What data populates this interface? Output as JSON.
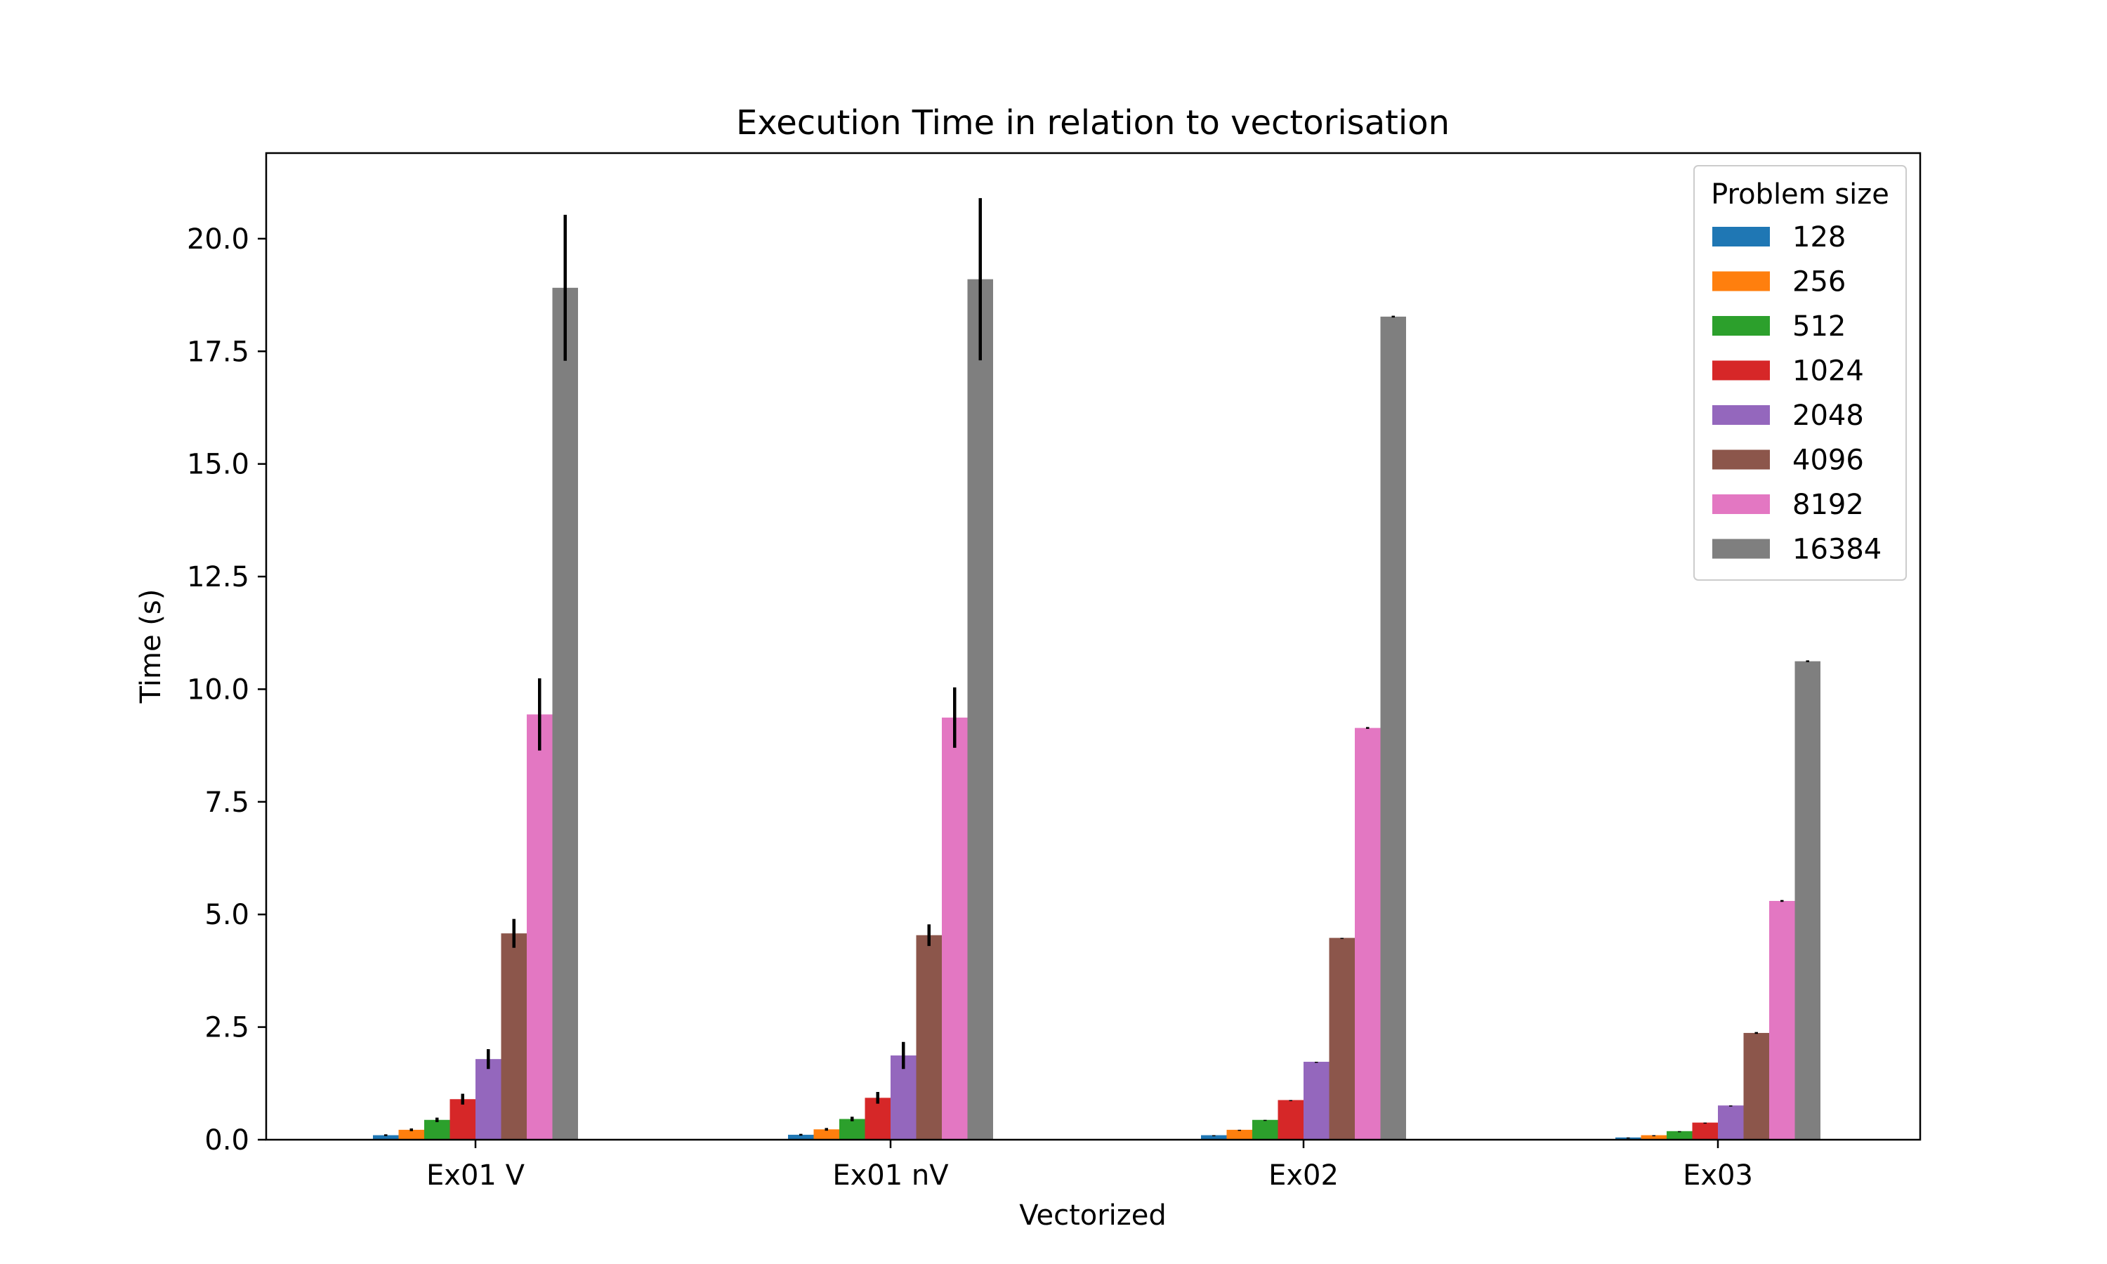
{
  "chart_data": {
    "type": "bar",
    "title": "Execution Time in relation to vectorisation",
    "xlabel": "Vectorized",
    "ylabel": "Time (s)",
    "ylim": [
      0,
      21.9
    ],
    "yticks": [
      "0.0",
      "2.5",
      "5.0",
      "7.5",
      "10.0",
      "12.5",
      "15.0",
      "17.5",
      "20.0"
    ],
    "categories": [
      "Ex01 V",
      "Ex01 nV",
      "Ex02",
      "Ex03"
    ],
    "legend": {
      "title": "Problem size",
      "placement": "top-right"
    },
    "grid": false,
    "series": [
      {
        "name": "128",
        "color": "#1f77b4",
        "values": [
          0.1,
          0.11,
          0.1,
          0.05
        ],
        "errors": [
          0.02,
          0.02,
          0.0,
          0.0
        ]
      },
      {
        "name": "256",
        "color": "#ff7f0e",
        "values": [
          0.22,
          0.23,
          0.22,
          0.1
        ],
        "errors": [
          0.03,
          0.03,
          0.0,
          0.0
        ]
      },
      {
        "name": "512",
        "color": "#2ca02c",
        "values": [
          0.44,
          0.46,
          0.44,
          0.19
        ],
        "errors": [
          0.05,
          0.05,
          0.0,
          0.0
        ]
      },
      {
        "name": "1024",
        "color": "#d62728",
        "values": [
          0.9,
          0.93,
          0.88,
          0.38
        ],
        "errors": [
          0.12,
          0.13,
          0.0,
          0.0
        ]
      },
      {
        "name": "2048",
        "color": "#9467bd",
        "values": [
          1.79,
          1.87,
          1.73,
          0.76
        ],
        "errors": [
          0.22,
          0.3,
          0.0,
          0.0
        ]
      },
      {
        "name": "4096",
        "color": "#8c564b",
        "values": [
          4.58,
          4.54,
          4.48,
          2.37
        ],
        "errors": [
          0.32,
          0.24,
          0.0,
          0.02
        ]
      },
      {
        "name": "8192",
        "color": "#e377c2",
        "values": [
          9.44,
          9.37,
          9.14,
          5.3
        ],
        "errors": [
          0.8,
          0.67,
          0.02,
          0.02
        ]
      },
      {
        "name": "16384",
        "color": "#7f7f7f",
        "values": [
          18.91,
          19.1,
          18.27,
          10.62
        ],
        "errors": [
          1.62,
          1.8,
          0.02,
          0.02
        ]
      }
    ]
  }
}
